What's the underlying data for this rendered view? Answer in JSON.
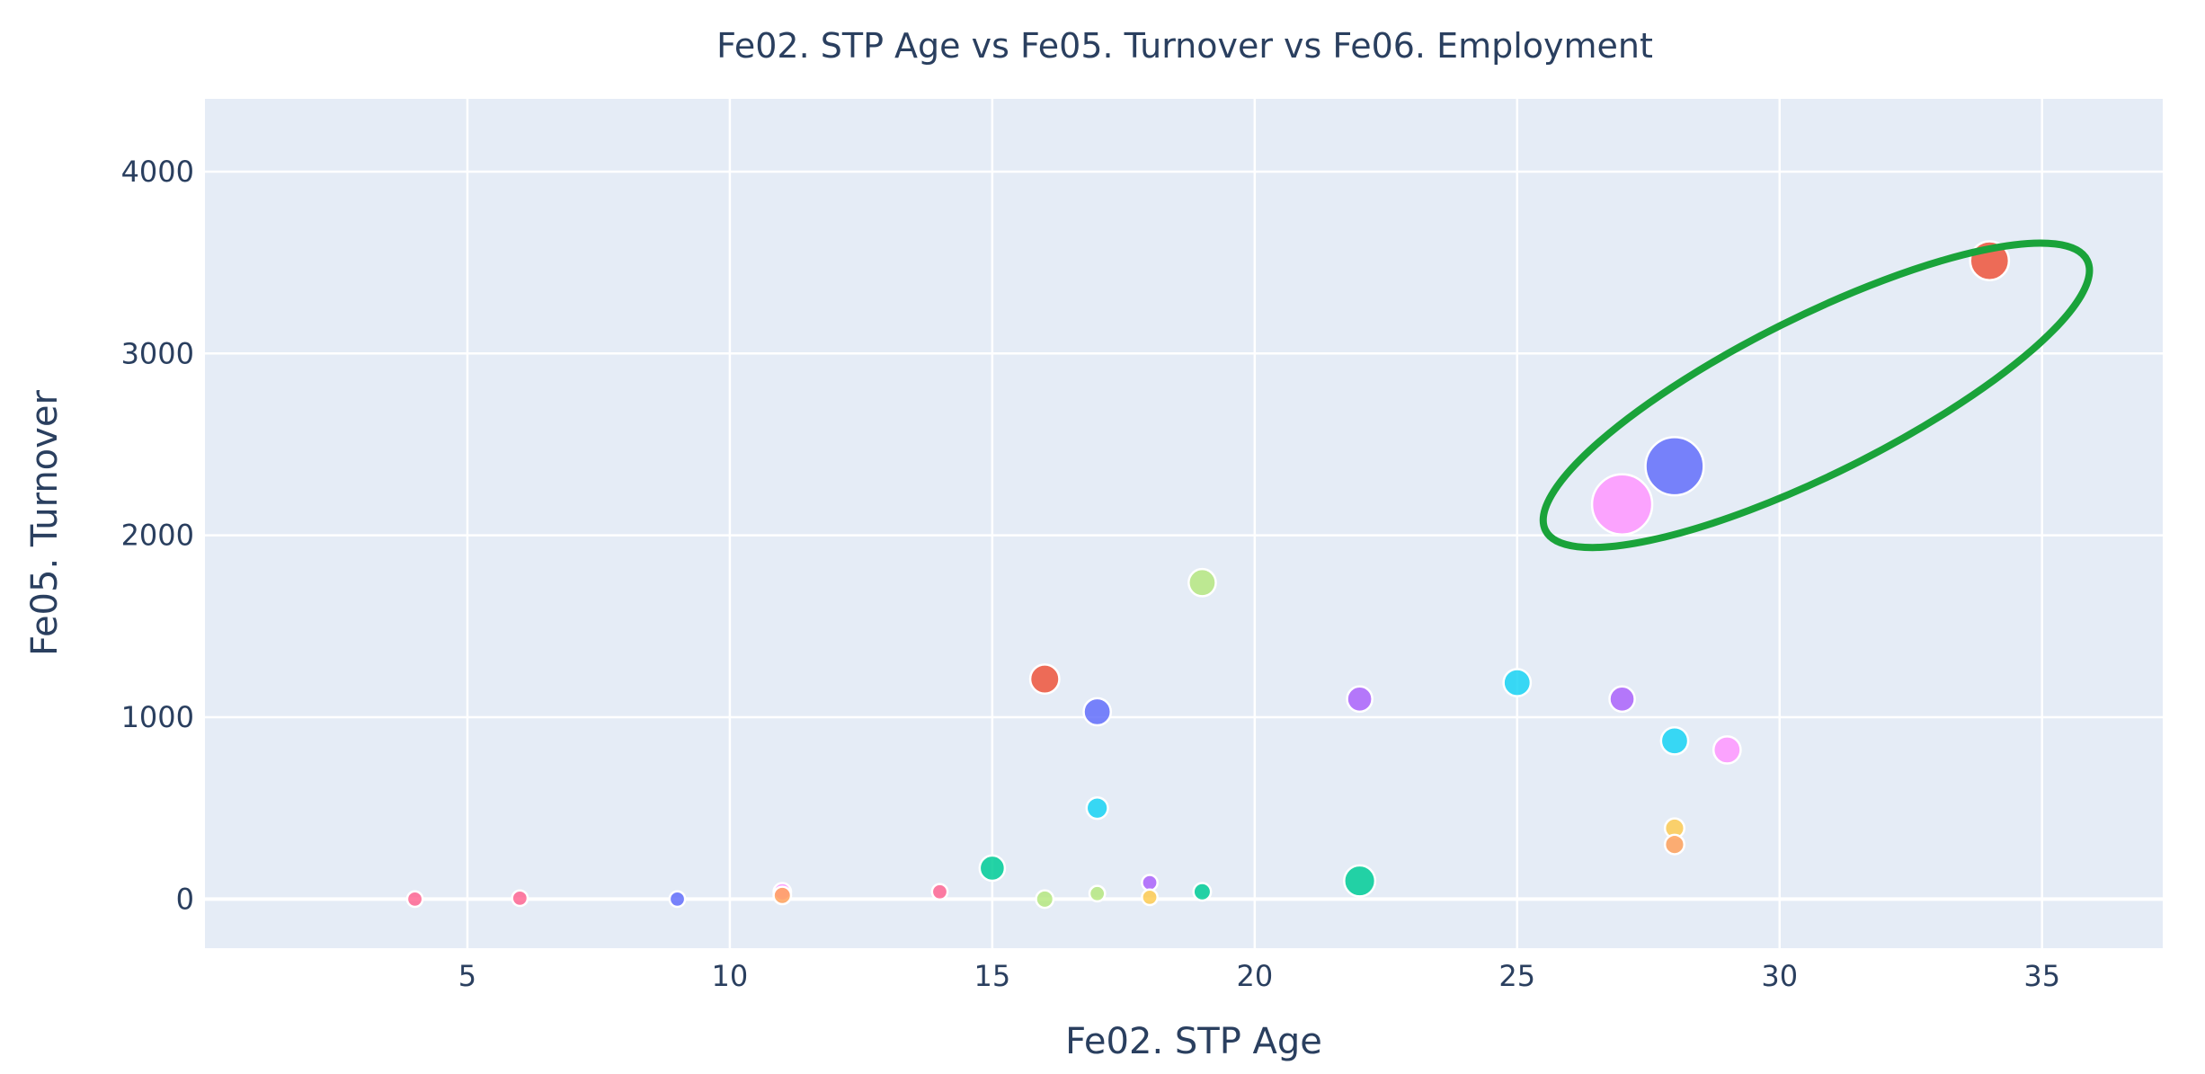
{
  "chart_data": {
    "type": "scatter",
    "subtype": "bubble",
    "title": "Fe02. STP Age vs Fe05. Turnover vs Fe06. Employment",
    "xlabel": "Fe02. STP Age",
    "ylabel": "Fe05. Turnover",
    "xlim": [
      0,
      37.3
    ],
    "ylim": [
      -270,
      4400
    ],
    "x_ticks": [
      5,
      10,
      15,
      20,
      25,
      30,
      35
    ],
    "y_ticks": [
      0,
      1000,
      2000,
      3000,
      4000
    ],
    "grid": true,
    "plot_background": "#e5ecf6",
    "points": [
      {
        "x": 4,
        "y": 0,
        "size": 8,
        "color": "#ff6692"
      },
      {
        "x": 6,
        "y": 5,
        "size": 8,
        "color": "#ff6692"
      },
      {
        "x": 9,
        "y": 0,
        "size": 8,
        "color": "#636efa"
      },
      {
        "x": 11,
        "y": 40,
        "size": 9,
        "color": "#ff97ff"
      },
      {
        "x": 11,
        "y": 20,
        "size": 9,
        "color": "#ffa15a"
      },
      {
        "x": 14,
        "y": 40,
        "size": 8,
        "color": "#ff6692"
      },
      {
        "x": 15,
        "y": 170,
        "size": 13,
        "color": "#00cc96"
      },
      {
        "x": 16,
        "y": 0,
        "size": 9,
        "color": "#b6e880"
      },
      {
        "x": 16,
        "y": 1210,
        "size": 15,
        "color": "#ef553b"
      },
      {
        "x": 17,
        "y": 1030,
        "size": 14,
        "color": "#636efa"
      },
      {
        "x": 17,
        "y": 500,
        "size": 11,
        "color": "#19d3f3"
      },
      {
        "x": 17,
        "y": 30,
        "size": 8,
        "color": "#b6e880"
      },
      {
        "x": 18,
        "y": 90,
        "size": 8,
        "color": "#ab63fa"
      },
      {
        "x": 18,
        "y": 10,
        "size": 8,
        "color": "#fecb52"
      },
      {
        "x": 19,
        "y": 1740,
        "size": 14,
        "color": "#b6e880"
      },
      {
        "x": 19,
        "y": 40,
        "size": 9,
        "color": "#00cc96"
      },
      {
        "x": 22,
        "y": 1100,
        "size": 13,
        "color": "#ab63fa"
      },
      {
        "x": 22,
        "y": 100,
        "size": 16,
        "color": "#00cc96"
      },
      {
        "x": 25,
        "y": 1190,
        "size": 14,
        "color": "#19d3f3"
      },
      {
        "x": 27,
        "y": 1100,
        "size": 13,
        "color": "#ab63fa"
      },
      {
        "x": 27,
        "y": 2170,
        "size": 31,
        "color": "#ff97ff"
      },
      {
        "x": 28,
        "y": 2380,
        "size": 30,
        "color": "#636efa"
      },
      {
        "x": 28,
        "y": 870,
        "size": 14,
        "color": "#19d3f3"
      },
      {
        "x": 28,
        "y": 390,
        "size": 10,
        "color": "#fecb52"
      },
      {
        "x": 28,
        "y": 300,
        "size": 10,
        "color": "#ffa15a"
      },
      {
        "x": 29,
        "y": 820,
        "size": 14,
        "color": "#ff97ff"
      },
      {
        "x": 34,
        "y": 3510,
        "size": 20,
        "color": "#ef553b"
      }
    ],
    "annotations": [
      {
        "shape": "ellipse",
        "color": "#1aa33a",
        "center": [
          30.7,
          2770
        ],
        "radii": [
          6.2,
          520
        ],
        "rotation": -26.5
      }
    ]
  }
}
